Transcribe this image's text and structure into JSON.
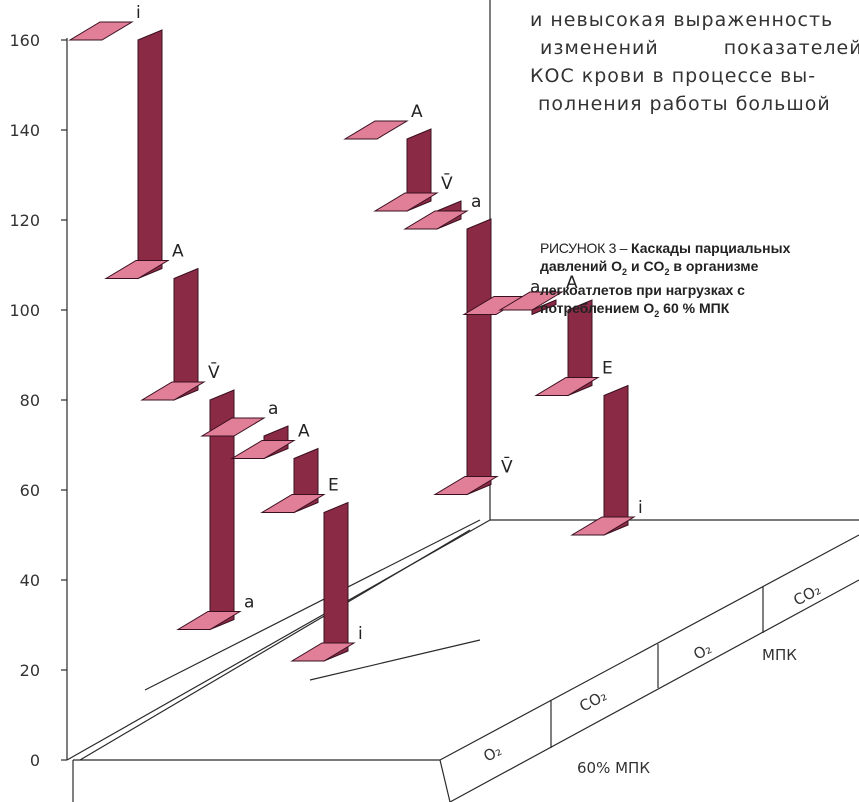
{
  "text": {
    "lines": [
      "и невысокая выраженность",
      "изменений показателей",
      "КОС крови в процессе вы-",
      "полнения работы большой"
    ]
  },
  "caption": {
    "lead": "РИСУНОК 3 –",
    "line1": "Каскады парциальных",
    "line2_a": "давлений O",
    "sub_a": "2",
    "line2_b": " и CO",
    "sub_b": "2",
    "line2_c": " в организме",
    "line3": "легкоатлетов при нагрузках с",
    "line4_a": "потреблением O",
    "sub_c": "2",
    "line4_b": " 60 % МПК"
  },
  "chart_data": {
    "type": "3d-step-cascade",
    "y_axis": {
      "ticks": [
        0,
        20,
        40,
        60,
        80,
        100,
        120,
        140,
        160
      ],
      "ylim": [
        0,
        165
      ]
    },
    "base_labels": {
      "load_near": "60% МПК",
      "load_far": "МПК",
      "cells": [
        "O₂",
        "CO₂",
        "O₂",
        "CO₂"
      ]
    },
    "series": [
      {
        "stages": [
          "i",
          "A",
          "V̄",
          "a"
        ],
        "values": [
          160,
          107,
          80,
          29
        ]
      },
      {
        "stages": [
          "a",
          "A",
          "E",
          "i"
        ],
        "values": [
          72,
          67,
          55,
          22
        ]
      },
      {
        "stages": [
          "A",
          "V̄",
          "a",
          "V̄"
        ],
        "values": [
          138,
          122,
          118,
          59
        ]
      },
      {
        "stages": [
          "a",
          "A",
          "E",
          "i"
        ],
        "values": [
          99,
          100,
          81,
          50
        ]
      }
    ],
    "grid": false
  }
}
